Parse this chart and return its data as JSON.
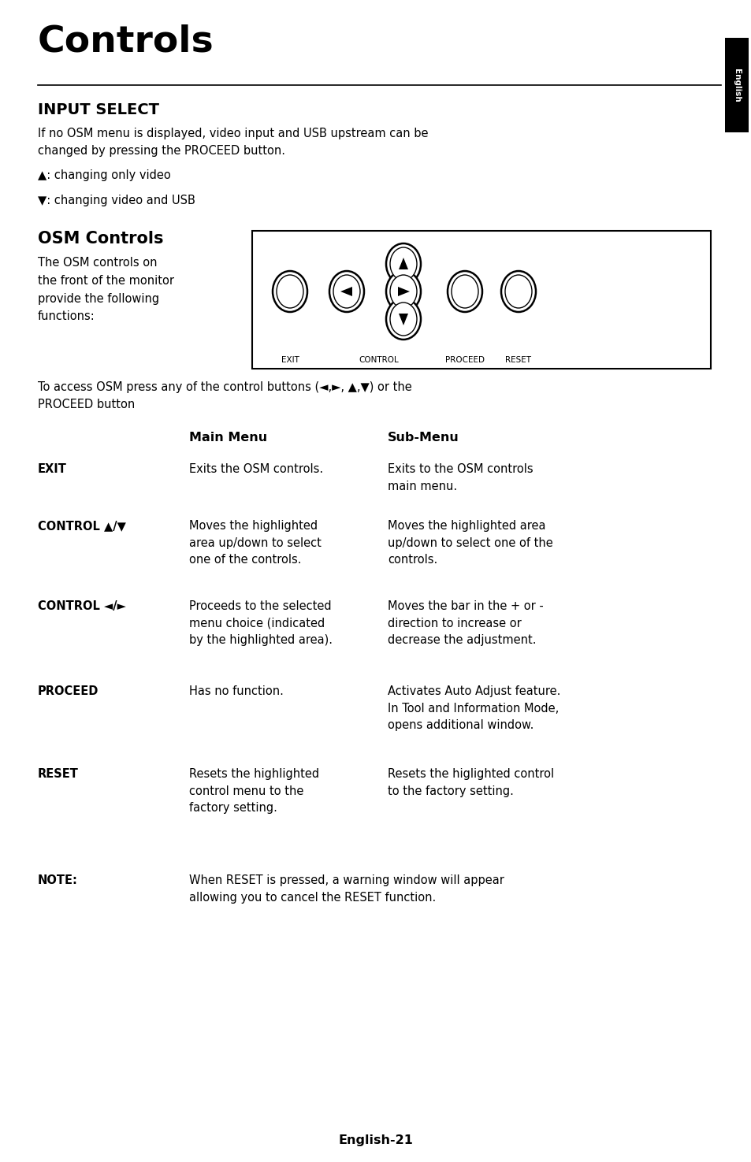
{
  "title": "Controls",
  "tab_text": "English",
  "section1_title": "INPUT SELECT",
  "section1_body": "If no OSM menu is displayed, video input and USB upstream can be\nchanged by pressing the PROCEED button.",
  "bullet1": "▲: changing only video",
  "bullet2": "▼: changing video and USB",
  "section2_title": "OSM Controls",
  "section2_body": "The OSM controls on\nthe front of the monitor\nprovide the following\nfunctions:",
  "access_text": "To access OSM press any of the control buttons (◄,►, ▲,▼) or the\nPROCEED button",
  "table_col2": "Main Menu",
  "table_col3": "Sub-Menu",
  "rows": [
    {
      "col1": "EXIT",
      "col2": "Exits the OSM controls.",
      "col3": "Exits to the OSM controls\nmain menu."
    },
    {
      "col1": "CONTROL ▲/▼",
      "col2": "Moves the highlighted\narea up/down to select\none of the controls.",
      "col3": "Moves the highlighted area\nup/down to select one of the\ncontrols."
    },
    {
      "col1": "CONTROL ◄/►",
      "col2": "Proceeds to the selected\nmenu choice (indicated\nby the highlighted area).",
      "col3": "Moves the bar in the + or -\ndirection to increase or\ndecrease the adjustment."
    },
    {
      "col1": "PROCEED",
      "col2": "Has no function.",
      "col3": "Activates Auto Adjust feature.\nIn Tool and Information Mode,\nopens additional window."
    },
    {
      "col1": "RESET",
      "col2": "Resets the highlighted\ncontrol menu to the\nfactory setting.",
      "col3": "Resets the higlighted control\nto the factory setting."
    }
  ],
  "note_label": "NOTE:",
  "note_text": "When RESET is pressed, a warning window will appear\nallowing you to cancel the RESET function.",
  "footer": "English-21",
  "bg_color": "#ffffff",
  "text_color": "#000000",
  "tab_bg": "#000000",
  "tab_fg": "#ffffff"
}
